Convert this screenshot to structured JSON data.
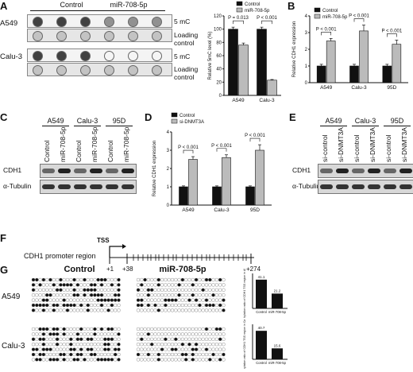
{
  "panels": {
    "A": "A",
    "B": "B",
    "C": "C",
    "D": "D",
    "E": "E",
    "F": "F",
    "G": "G"
  },
  "panelA": {
    "col_groups": [
      "Control",
      "miR-708-5p"
    ],
    "rows": [
      {
        "cell": "A549",
        "label1": "5 mC",
        "label2": "Loading control"
      },
      {
        "cell": "Calu-3",
        "label1": "5 mC",
        "label2": "Loading control"
      }
    ],
    "dot_levels": {
      "A549_5mc": [
        0.95,
        0.95,
        0.95,
        0.55,
        0.55,
        0.55
      ],
      "A549_load": [
        0.3,
        0.3,
        0.3,
        0.3,
        0.3,
        0.3
      ],
      "Calu3_5mc": [
        0.95,
        0.95,
        0.95,
        0.05,
        0.05,
        0.05
      ],
      "Calu3_load": [
        0.3,
        0.3,
        0.3,
        0.3,
        0.3,
        0.3
      ]
    }
  },
  "chart_data": [
    {
      "id": "A",
      "type": "bar",
      "ylabel": "Relative 5mC level (%)",
      "ylim": [
        0,
        120
      ],
      "yticks": [
        "0",
        "20",
        "40",
        "60",
        "80",
        "100",
        "120"
      ],
      "categories": [
        "A549",
        "Calu-3"
      ],
      "series": [
        {
          "name": "Control",
          "values": [
            100,
            100
          ],
          "err": [
            3,
            3
          ]
        },
        {
          "name": "miR-708-5p",
          "values": [
            76,
            23
          ],
          "err": [
            3,
            1
          ]
        }
      ],
      "pvalues": [
        "P = 0.013",
        "P < 0.001"
      ]
    },
    {
      "id": "B",
      "type": "bar",
      "ylabel": "Relative CDH1 expression",
      "ylim": [
        0,
        4
      ],
      "yticks": [
        "0",
        "1",
        "2",
        "3",
        "4"
      ],
      "categories": [
        "A549",
        "Calu-3",
        "95D"
      ],
      "series": [
        {
          "name": "Control",
          "values": [
            1,
            1,
            1
          ],
          "err": [
            0.1,
            0.1,
            0.1
          ]
        },
        {
          "name": "miR-708-5p",
          "values": [
            2.5,
            3.1,
            2.3
          ],
          "err": [
            0.15,
            0.35,
            0.25
          ]
        }
      ],
      "pvalues": [
        "P < 0.001",
        "P < 0.001",
        "P < 0.001"
      ]
    },
    {
      "id": "D",
      "type": "bar",
      "ylabel": "Relative CDH1 expression",
      "ylim": [
        0,
        4
      ],
      "yticks": [
        "0",
        "1",
        "2",
        "3",
        "4"
      ],
      "categories": [
        "A549",
        "Calu-3",
        "95D"
      ],
      "series": [
        {
          "name": "Control",
          "values": [
            1,
            1,
            1
          ],
          "err": [
            0.05,
            0.05,
            0.05
          ]
        },
        {
          "name": "si-DNMT3A",
          "values": [
            2.5,
            2.6,
            3.0
          ],
          "err": [
            0.15,
            0.15,
            0.3
          ]
        }
      ],
      "pvalues": [
        "P < 0.001",
        "P < 0.001",
        "P < 0.001"
      ]
    },
    {
      "id": "G1",
      "type": "bar",
      "ylabel": "Methylation ratio of CDH1 TSS region in A549 (%)",
      "ylim": [
        0,
        50
      ],
      "categories": [
        "Control",
        "miR-708-5p"
      ],
      "values": [
        41.1,
        21.2
      ],
      "labels": [
        "41.1",
        "21.2"
      ]
    },
    {
      "id": "G2",
      "type": "bar",
      "ylabel": "Methylation ratio of CDH1 TSS region in Calu-3 (%)",
      "ylim": [
        0,
        50
      ],
      "categories": [
        "Control",
        "miR-708-5p"
      ],
      "values": [
        40.7,
        15.6
      ],
      "labels": [
        "40.7",
        "15.6"
      ]
    }
  ],
  "panelC": {
    "groups": [
      "A549",
      "Calu-3",
      "95D"
    ],
    "lanes": [
      "Control",
      "miR-708-5p",
      "Control",
      "miR-708-5p",
      "Control",
      "miR-708-5p"
    ],
    "bands": [
      "CDH1",
      "α-Tubulin"
    ]
  },
  "panelE": {
    "groups": [
      "A549",
      "Calu-3",
      "95D"
    ],
    "lanes": [
      "si-control",
      "si-DNMT3A",
      "si-control",
      "si-DNMT3A",
      "si-control",
      "si-DNMT3A"
    ],
    "bands": [
      "CDH1",
      "α-Tubulin"
    ]
  },
  "panelF": {
    "region_label": "CDH1 promoter region",
    "tss": "TSS",
    "pos1": "+1",
    "pos2": "+38",
    "pos3": "+274"
  },
  "panelG": {
    "groups": [
      "Control",
      "miR-708-5p"
    ],
    "cells": [
      "A549",
      "Calu-3"
    ]
  }
}
